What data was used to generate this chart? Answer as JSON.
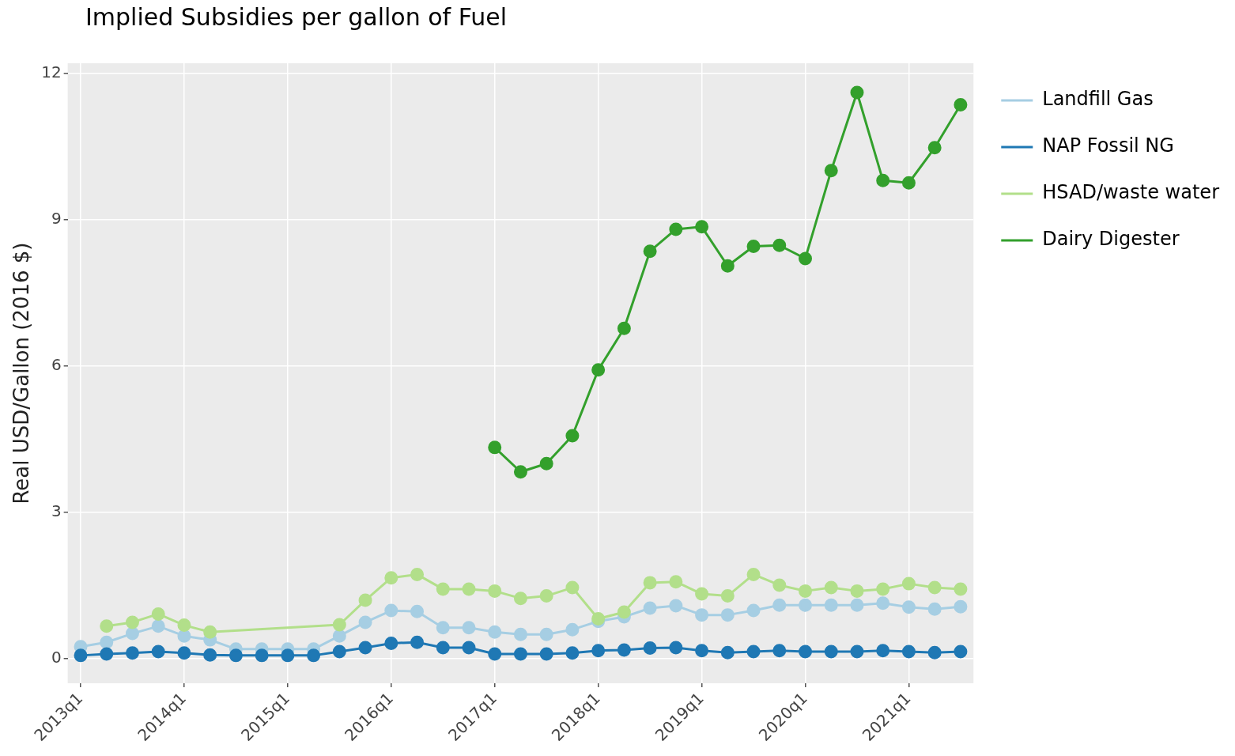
{
  "chart_data": {
    "type": "line",
    "title": "Implied Subsidies per gallon of Fuel",
    "ylabel": "Real USD/Gallon (2016 $)",
    "categories": [
      "2013q1",
      null,
      null,
      null,
      "2014q1",
      null,
      null,
      null,
      "2015q1",
      null,
      null,
      null,
      "2016q1",
      null,
      null,
      null,
      "2017q1",
      null,
      null,
      null,
      "2018q1",
      null,
      null,
      null,
      "2019q1",
      null,
      null,
      null,
      "2020q1",
      null,
      null,
      null,
      "2021q1",
      null,
      null
    ],
    "series": [
      {
        "name": "Landfill Gas",
        "color": "#a6cee3",
        "values": [
          0.25,
          0.34,
          0.52,
          0.67,
          0.47,
          0.39,
          0.2,
          0.2,
          0.2,
          0.2,
          0.47,
          0.75,
          0.99,
          0.97,
          0.64,
          0.64,
          0.55,
          0.5,
          0.5,
          0.6,
          0.77,
          0.86,
          1.04,
          1.09,
          0.9,
          0.9,
          0.99,
          1.1,
          1.1,
          1.1,
          1.1,
          1.14,
          1.06,
          1.02,
          1.07
        ]
      },
      {
        "name": "NAP Fossil NG",
        "color": "#1f78b4",
        "values": [
          0.07,
          0.1,
          0.12,
          0.15,
          0.12,
          0.08,
          0.07,
          0.07,
          0.07,
          0.07,
          0.15,
          0.23,
          0.32,
          0.34,
          0.23,
          0.23,
          0.1,
          0.1,
          0.1,
          0.12,
          0.17,
          0.18,
          0.22,
          0.23,
          0.17,
          0.13,
          0.15,
          0.17,
          0.15,
          0.15,
          0.15,
          0.17,
          0.15,
          0.13,
          0.15
        ]
      },
      {
        "name": "HSAD/waste water",
        "color": "#b2df8a",
        "values": [
          null,
          0.67,
          0.75,
          0.92,
          0.69,
          0.55,
          null,
          null,
          null,
          null,
          0.7,
          1.2,
          1.66,
          1.73,
          1.43,
          1.43,
          1.39,
          1.24,
          1.29,
          1.46,
          0.82,
          0.96,
          1.56,
          1.58,
          1.33,
          1.29,
          1.73,
          1.51,
          1.39,
          1.46,
          1.39,
          1.43,
          1.54,
          1.46,
          1.43
        ]
      },
      {
        "name": "Dairy Digester",
        "color": "#33a02c",
        "values": [
          null,
          null,
          null,
          null,
          null,
          null,
          null,
          null,
          null,
          null,
          null,
          null,
          null,
          null,
          null,
          null,
          4.33,
          3.83,
          4.0,
          4.57,
          5.92,
          6.77,
          8.35,
          8.8,
          8.85,
          8.05,
          8.45,
          8.47,
          8.2,
          10.0,
          11.6,
          9.8,
          9.75,
          10.47,
          11.35
        ]
      }
    ],
    "ylim": [
      -0.5,
      12.2
    ],
    "yticks": [
      0,
      3,
      6,
      9,
      12
    ],
    "grid": true,
    "legend": "right",
    "marker": "circle",
    "line_style": "solid"
  }
}
